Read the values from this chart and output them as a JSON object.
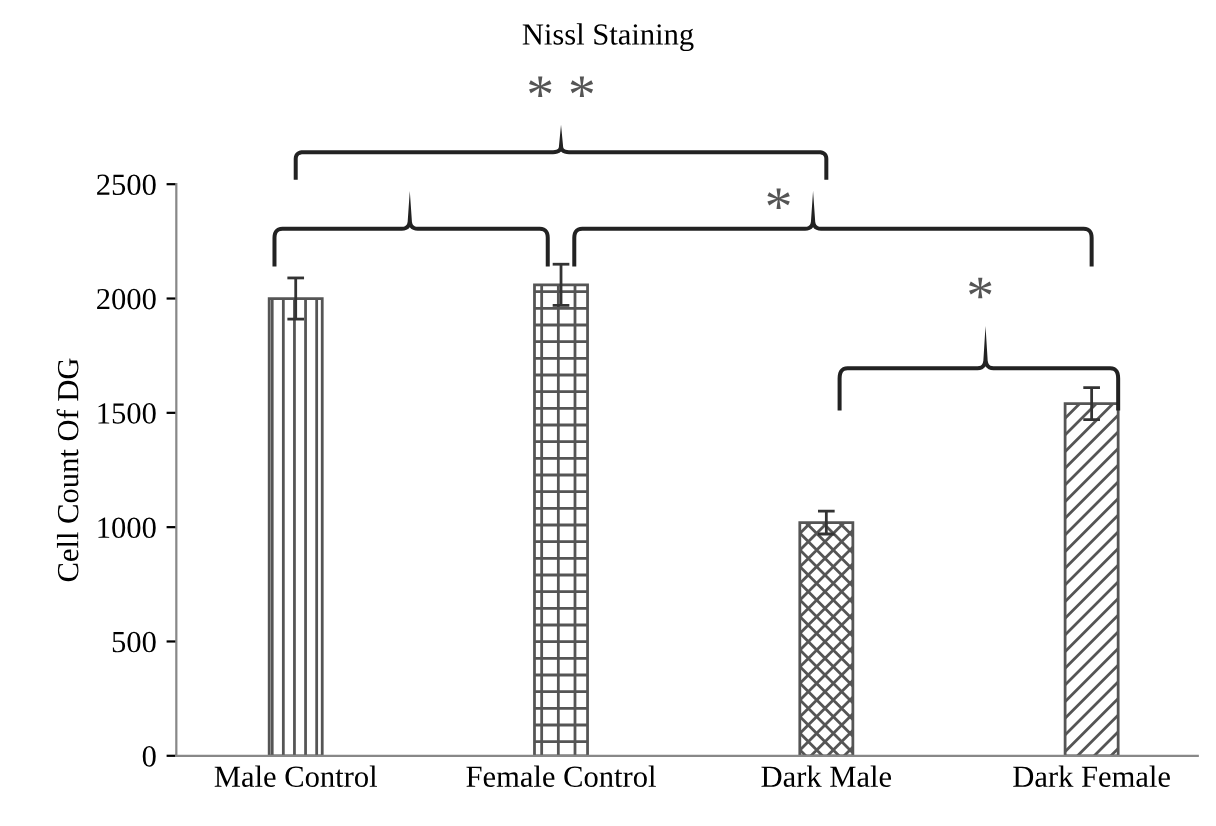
{
  "chart_data": {
    "type": "bar",
    "title": "Nissl Staining",
    "ylabel": "Cell Count Of DG",
    "categories": [
      "Male Control",
      "Female Control",
      "Dark Male",
      "Dark Female"
    ],
    "values": [
      2000,
      2060,
      1020,
      1540
    ],
    "errors": [
      90,
      90,
      50,
      70
    ],
    "colors": [
      "#555555",
      "#555555",
      "#555555",
      "#555555"
    ],
    "ylim": [
      0,
      2500
    ],
    "yticks": [
      0,
      500,
      1000,
      1500,
      2000,
      2500
    ],
    "grid": false,
    "legend": false,
    "annotations": [
      "* *",
      "*",
      "*"
    ]
  }
}
